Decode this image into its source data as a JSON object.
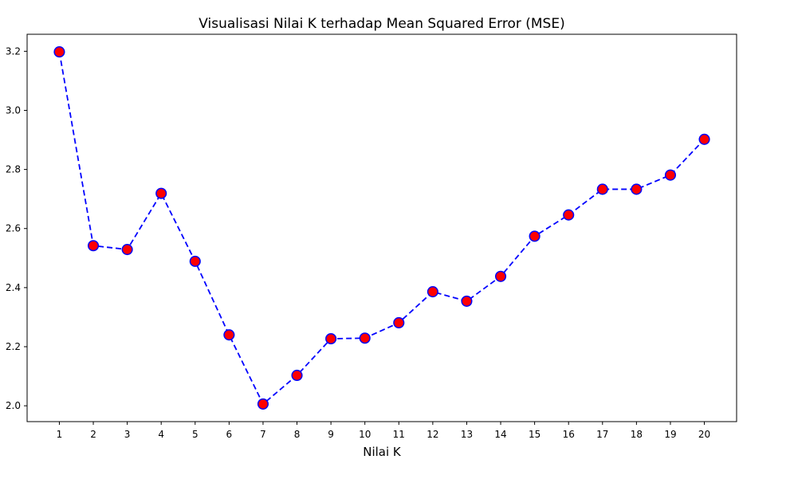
{
  "chart_data": {
    "type": "line",
    "title": "Visualisasi Nilai K terhadap Mean Squared Error (MSE)",
    "xlabel": "Nilai K",
    "ylabel": "",
    "x": [
      1,
      2,
      3,
      4,
      5,
      6,
      7,
      8,
      9,
      10,
      11,
      12,
      13,
      14,
      15,
      16,
      17,
      18,
      19,
      20
    ],
    "series": [
      {
        "values": [
          3.198,
          2.542,
          2.529,
          2.719,
          2.489,
          2.24,
          2.006,
          2.103,
          2.227,
          2.229,
          2.281,
          2.386,
          2.354,
          2.438,
          2.574,
          2.646,
          2.733,
          2.733,
          2.781,
          2.902
        ],
        "line_color": "#0000ff",
        "line_style": "dashed",
        "marker": "circle",
        "marker_face": "#ff0000",
        "marker_edge": "#0000ff"
      }
    ],
    "xticks": [
      "1",
      "2",
      "3",
      "4",
      "5",
      "6",
      "7",
      "8",
      "9",
      "10",
      "11",
      "12",
      "13",
      "14",
      "15",
      "16",
      "17",
      "18",
      "19",
      "20"
    ],
    "yticks": [
      "2.0",
      "2.2",
      "2.4",
      "2.6",
      "2.8",
      "3.0",
      "3.2"
    ],
    "xlim": [
      0.05,
      20.95
    ],
    "ylim": [
      1.9464,
      3.2576
    ],
    "grid": false,
    "legend": false
  }
}
